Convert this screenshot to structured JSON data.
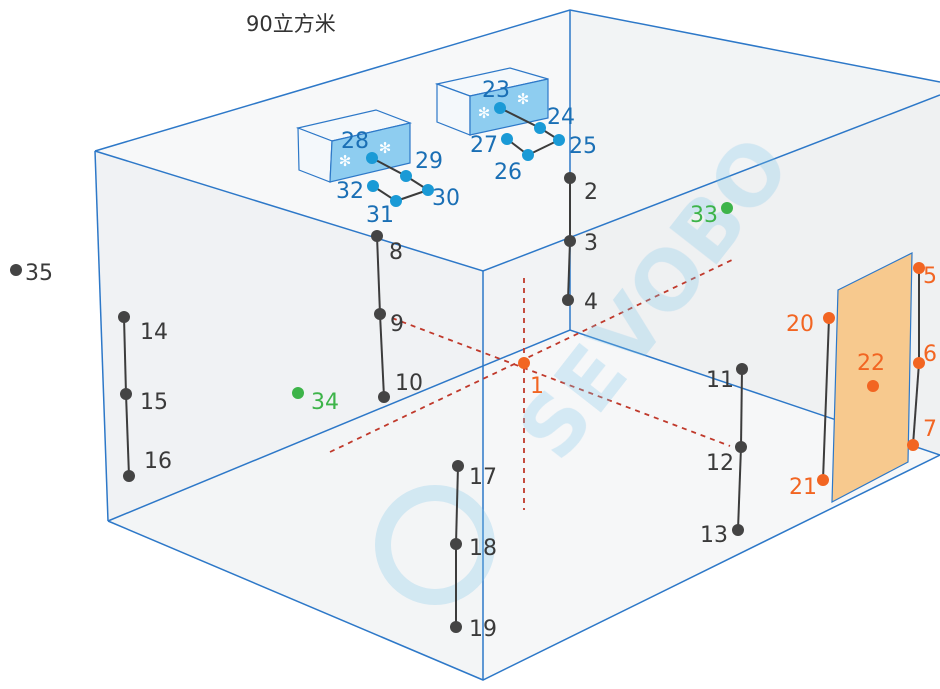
{
  "title": "90立方米",
  "watermark": "SEVOBO",
  "colors": {
    "edge": "#2d78c8",
    "wall": "#e9ecef",
    "door": "#f7c98e",
    "unit": "#8ecdf0",
    "gray_point": "#444444",
    "blue_point": "#1a9ad6",
    "orange_point": "#f26522",
    "green_point": "#3db449",
    "blue_label": "#1a6fb5",
    "orange_label": "#f26522",
    "green_label": "#3db449",
    "gray_label": "#3a3a3a",
    "axis": "#c0392b"
  },
  "points": [
    {
      "id": "1",
      "label": "1",
      "color": "orange"
    },
    {
      "id": "2",
      "label": "2",
      "color": "gray"
    },
    {
      "id": "3",
      "label": "3",
      "color": "gray"
    },
    {
      "id": "4",
      "label": "4",
      "color": "gray"
    },
    {
      "id": "5",
      "label": "5",
      "color": "orange"
    },
    {
      "id": "6",
      "label": "6",
      "color": "orange"
    },
    {
      "id": "7",
      "label": "7",
      "color": "orange"
    },
    {
      "id": "8",
      "label": "8",
      "color": "gray"
    },
    {
      "id": "9",
      "label": "9",
      "color": "gray"
    },
    {
      "id": "10",
      "label": "10",
      "color": "gray"
    },
    {
      "id": "11",
      "label": "11",
      "color": "gray"
    },
    {
      "id": "12",
      "label": "12",
      "color": "gray"
    },
    {
      "id": "13",
      "label": "13",
      "color": "gray"
    },
    {
      "id": "14",
      "label": "14",
      "color": "gray"
    },
    {
      "id": "15",
      "label": "15",
      "color": "gray"
    },
    {
      "id": "16",
      "label": "16",
      "color": "gray"
    },
    {
      "id": "17",
      "label": "17",
      "color": "gray"
    },
    {
      "id": "18",
      "label": "18",
      "color": "gray"
    },
    {
      "id": "19",
      "label": "19",
      "color": "gray"
    },
    {
      "id": "20",
      "label": "20",
      "color": "orange"
    },
    {
      "id": "21",
      "label": "21",
      "color": "orange"
    },
    {
      "id": "22",
      "label": "22",
      "color": "orange"
    },
    {
      "id": "23",
      "label": "23",
      "color": "blue"
    },
    {
      "id": "24",
      "label": "24",
      "color": "blue"
    },
    {
      "id": "25",
      "label": "25",
      "color": "blue"
    },
    {
      "id": "26",
      "label": "26",
      "color": "blue"
    },
    {
      "id": "27",
      "label": "27",
      "color": "blue"
    },
    {
      "id": "28",
      "label": "28",
      "color": "blue"
    },
    {
      "id": "29",
      "label": "29",
      "color": "blue"
    },
    {
      "id": "30",
      "label": "30",
      "color": "blue"
    },
    {
      "id": "31",
      "label": "31",
      "color": "blue"
    },
    {
      "id": "32",
      "label": "32",
      "color": "blue"
    },
    {
      "id": "33",
      "label": "33",
      "color": "green"
    },
    {
      "id": "34",
      "label": "34",
      "color": "green"
    },
    {
      "id": "35",
      "label": "35",
      "color": "gray"
    }
  ],
  "connections": [
    [
      "2",
      "3"
    ],
    [
      "3",
      "4"
    ],
    [
      "8",
      "9"
    ],
    [
      "9",
      "10"
    ],
    [
      "11",
      "12"
    ],
    [
      "12",
      "13"
    ],
    [
      "14",
      "15"
    ],
    [
      "15",
      "16"
    ],
    [
      "17",
      "18"
    ],
    [
      "18",
      "19"
    ],
    [
      "5",
      "6"
    ],
    [
      "6",
      "7"
    ],
    [
      "20",
      "21"
    ],
    [
      "23",
      "24"
    ],
    [
      "24",
      "25"
    ],
    [
      "25",
      "26"
    ],
    [
      "26",
      "27"
    ],
    [
      "28",
      "29"
    ],
    [
      "29",
      "30"
    ],
    [
      "30",
      "31"
    ],
    [
      "31",
      "32"
    ]
  ]
}
